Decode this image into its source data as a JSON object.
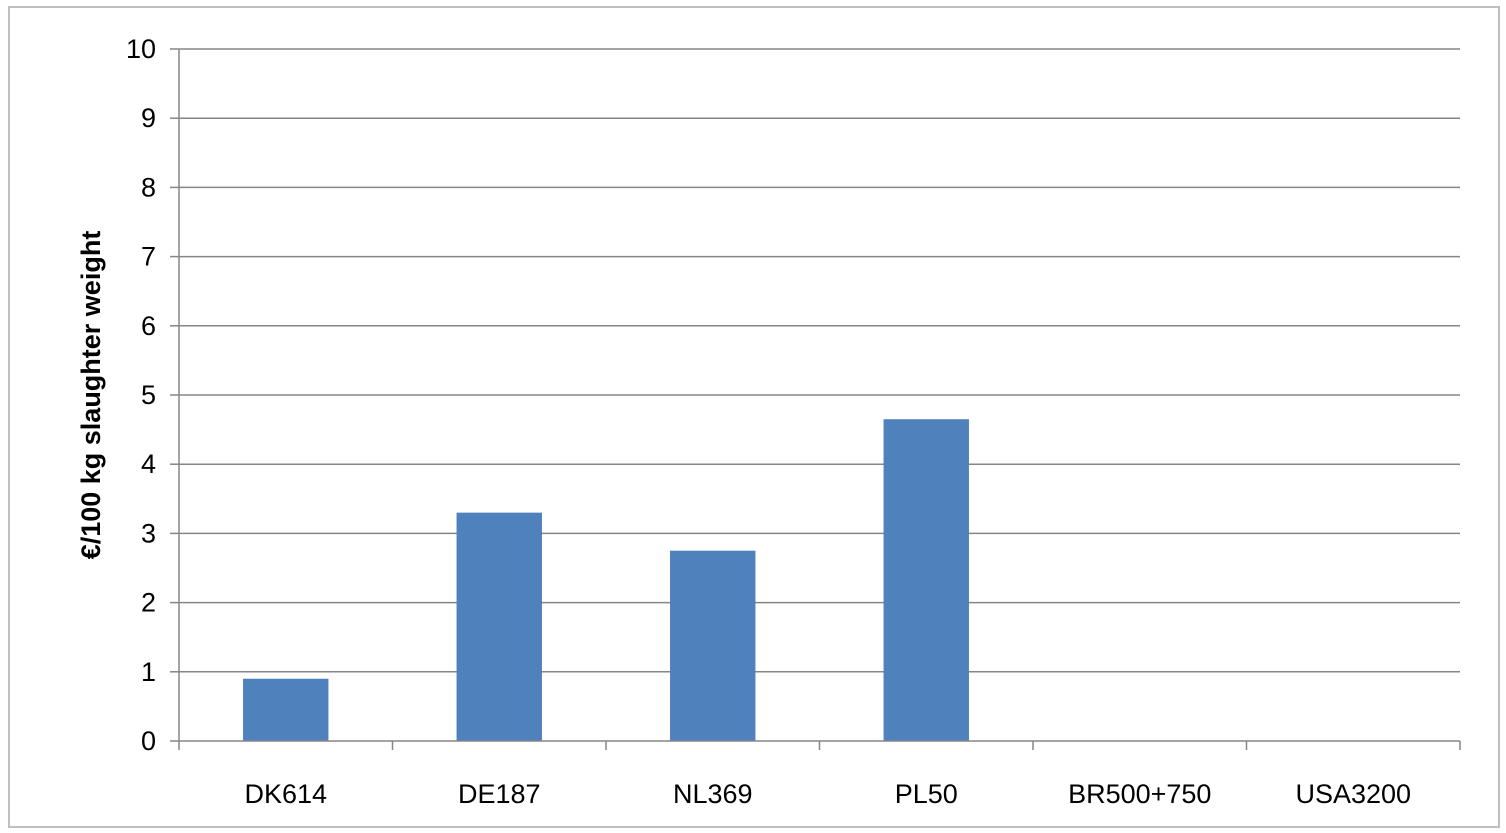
{
  "chart_data": {
    "type": "bar",
    "title": "",
    "xlabel": "",
    "ylabel": "€/100 kg slaughter weight",
    "categories": [
      "DK614",
      "DE187",
      "NL369",
      "PL50",
      "BR500+750",
      "USA3200"
    ],
    "values": [
      0.9,
      3.3,
      2.75,
      4.65,
      0,
      0
    ],
    "ylim": [
      0,
      10
    ],
    "yticks": [
      "0",
      "1",
      "2",
      "3",
      "4",
      "5",
      "6",
      "7",
      "8",
      "9",
      "10"
    ],
    "grid": true,
    "legend": "none",
    "colors": {
      "bar": "#4f81bd",
      "grid": "#868686",
      "axis": "#868686",
      "frame": "#bfbfbf"
    }
  }
}
